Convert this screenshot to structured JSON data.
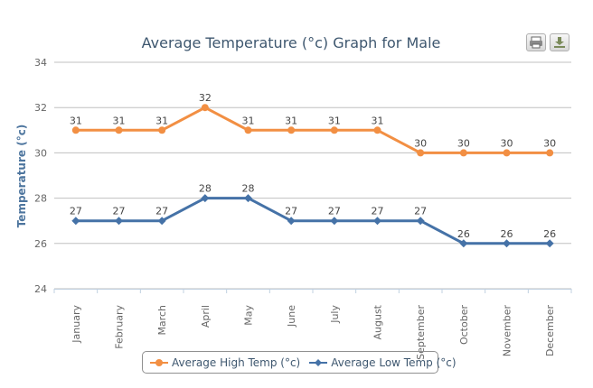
{
  "chart_data": {
    "type": "line",
    "title": "Average Temperature (°c) Graph for Male",
    "xlabel": "",
    "ylabel": "Temperature (°c)",
    "ylim": [
      24,
      34
    ],
    "yticks": [
      24,
      26,
      28,
      30,
      32,
      34
    ],
    "grid": true,
    "legend_position": "bottom",
    "categories": [
      "January",
      "February",
      "March",
      "April",
      "May",
      "June",
      "July",
      "August",
      "September",
      "October",
      "November",
      "December"
    ],
    "series": [
      {
        "name": "Average High Temp (°c)",
        "color": "#f28f43",
        "marker": "circle",
        "values": [
          31,
          31,
          31,
          32,
          31,
          31,
          31,
          31,
          30,
          30,
          30,
          30
        ]
      },
      {
        "name": "Average Low Temp (°c)",
        "color": "#4572a7",
        "marker": "diamond",
        "values": [
          27,
          27,
          27,
          28,
          28,
          27,
          27,
          27,
          27,
          26,
          26,
          26
        ]
      }
    ]
  },
  "toolbar": {
    "print_icon": "print-icon",
    "download_icon": "download-icon"
  }
}
